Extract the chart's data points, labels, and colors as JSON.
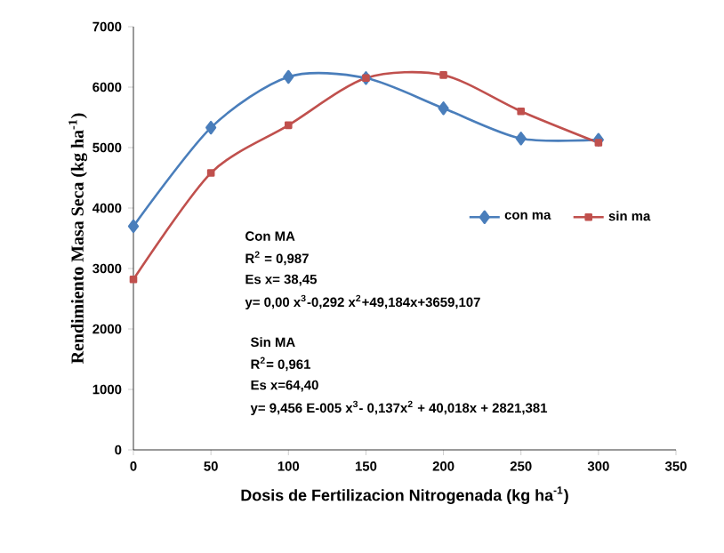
{
  "chart_data": {
    "type": "line",
    "xlabel": "Dosis de Fertilizacion Nitrogenada (kg ha$^{-1}$)",
    "ylabel": "Rendimiento Masa Seca (kg ha$^{-1}$)",
    "x": [
      0,
      50,
      100,
      150,
      200,
      250,
      300
    ],
    "series": [
      {
        "name": "con ma",
        "color": "#4a7ebb",
        "marker": "diamond",
        "values": [
          3700,
          5330,
          6170,
          6150,
          5650,
          5150,
          5130
        ]
      },
      {
        "name": "sin ma",
        "color": "#c0504d",
        "marker": "square",
        "values": [
          2820,
          4580,
          5370,
          6150,
          6200,
          5600,
          5080
        ]
      }
    ],
    "xlim": [
      0,
      350
    ],
    "xticks": [
      0,
      50,
      100,
      150,
      200,
      250,
      300,
      350
    ],
    "ylim": [
      0,
      7000
    ],
    "yticks": [
      0,
      1000,
      2000,
      3000,
      4000,
      5000,
      6000,
      7000
    ],
    "grid": false,
    "legend": "right",
    "annotations": [
      "Con MA",
      "R$^{2}$ = 0,987",
      "Es x= 38,45",
      "y= 0,00 x$^{3}$-0,292 x$^{2}$+49,184x+3659,107",
      "Sin MA",
      "R$^{2}$= 0,961",
      "Es x=64,40",
      "y= 9,456 E-005 x$^{3}$- 0,137x$^{2}$ + 40,018x + 2821,381"
    ]
  }
}
